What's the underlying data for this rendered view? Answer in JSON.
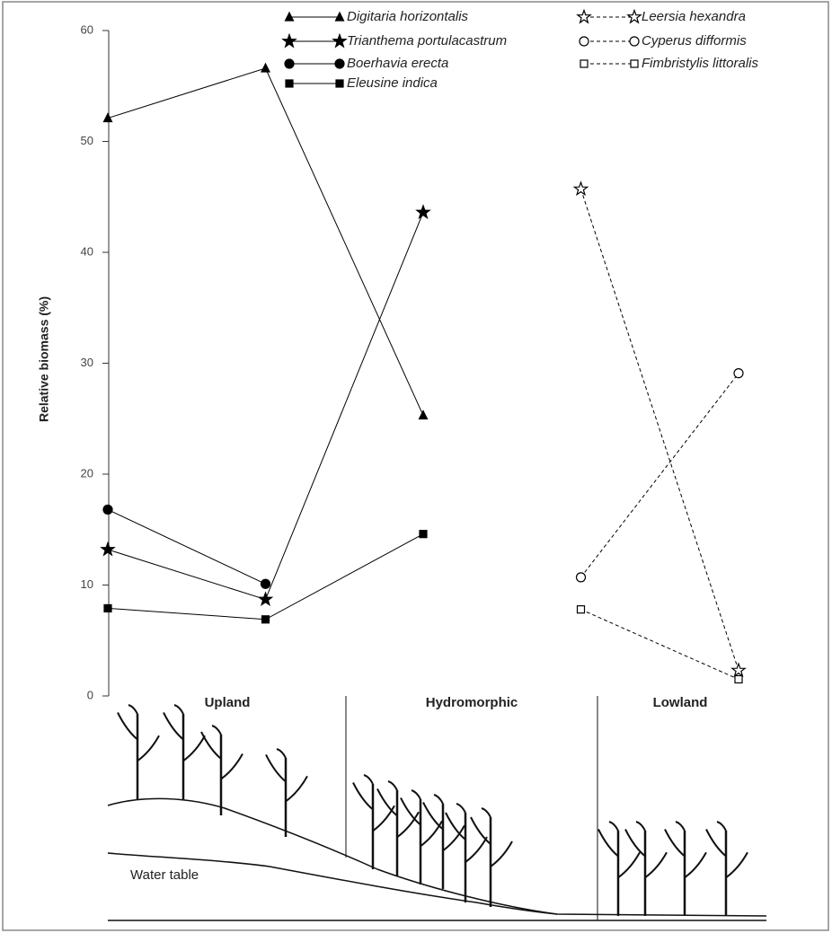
{
  "chart_data": {
    "type": "line",
    "ylabel": "Relative biomass (%)",
    "categories": [
      null,
      null,
      null,
      null,
      null
    ],
    "ylim": [
      0,
      60
    ],
    "yticks": [
      0,
      10,
      20,
      30,
      40,
      50,
      60
    ],
    "series": [
      {
        "name": "Digitaria horizontalis",
        "color": "#000000",
        "marker": "triangle",
        "filled": true,
        "dashed": false,
        "values": [
          52.1,
          56.6,
          25.3,
          null,
          null
        ]
      },
      {
        "name": "Trianthema portulacastrum",
        "color": "#000000",
        "marker": "star",
        "filled": true,
        "dashed": false,
        "values": [
          13.2,
          8.7,
          43.6,
          null,
          null
        ]
      },
      {
        "name": "Boerhavia erecta",
        "color": "#000000",
        "marker": "circle",
        "filled": true,
        "dashed": false,
        "values": [
          16.8,
          10.1,
          null,
          null,
          null
        ]
      },
      {
        "name": "Eleusine indica",
        "color": "#000000",
        "marker": "square",
        "filled": true,
        "dashed": false,
        "values": [
          7.9,
          6.9,
          14.6,
          null,
          null
        ]
      },
      {
        "name": "Leersia hexandra",
        "color": "#000000",
        "marker": "star",
        "filled": false,
        "dashed": true,
        "values": [
          null,
          null,
          null,
          45.7,
          2.3
        ]
      },
      {
        "name": "Cyperus difformis",
        "color": "#000000",
        "marker": "circle",
        "filled": false,
        "dashed": true,
        "values": [
          null,
          null,
          null,
          10.7,
          29.1
        ]
      },
      {
        "name": "Fimbristylis littoralis",
        "color": "#000000",
        "marker": "square",
        "filled": false,
        "dashed": true,
        "values": [
          null,
          null,
          null,
          7.8,
          1.5
        ]
      }
    ],
    "zones": [
      "Upland",
      "Hydromorphic",
      "Lowland"
    ],
    "annotation": "Water table"
  }
}
